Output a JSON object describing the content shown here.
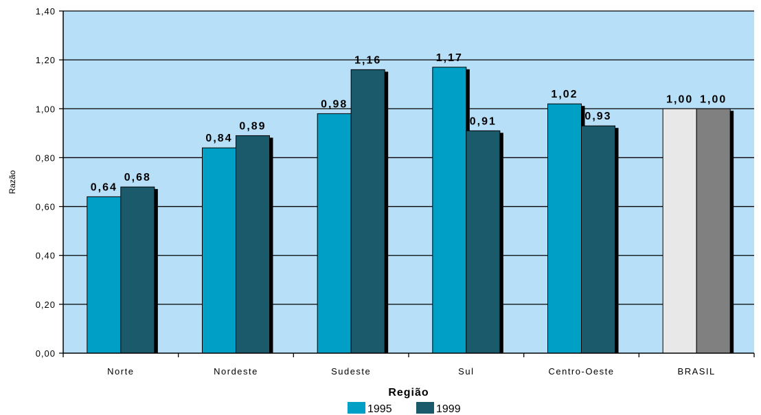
{
  "chart_data": {
    "type": "bar",
    "xlabel": "Região",
    "ylabel": "Razão",
    "ylim": [
      0,
      1.4
    ],
    "yticks": [
      "0,00",
      "0,20",
      "0,40",
      "0,60",
      "0,80",
      "1,00",
      "1,20",
      "1,40"
    ],
    "categories": [
      "Norte",
      "Nordeste",
      "Sudeste",
      "Sul",
      "Centro-Oeste",
      "BRASIL"
    ],
    "series": [
      {
        "name": "1995",
        "color": "#00A0C6",
        "values": [
          0.64,
          0.84,
          0.98,
          1.17,
          1.02,
          1.0
        ],
        "labels": [
          "0,64",
          "0,84",
          "0,98",
          "1,17",
          "1,02",
          "1,00"
        ]
      },
      {
        "name": "1999",
        "color": "#1B5A6B",
        "values": [
          0.68,
          0.89,
          1.16,
          0.91,
          0.93,
          1.0
        ],
        "labels": [
          "0,68",
          "0,89",
          "1,16",
          "0,91",
          "0,93",
          "1,00"
        ]
      }
    ],
    "highlight_category": {
      "name": "BRASIL",
      "colors": [
        "#E8E8E8",
        "#808080"
      ]
    },
    "plot_background": "#B8DFF8",
    "grid": true,
    "legend_position": "bottom-center"
  }
}
